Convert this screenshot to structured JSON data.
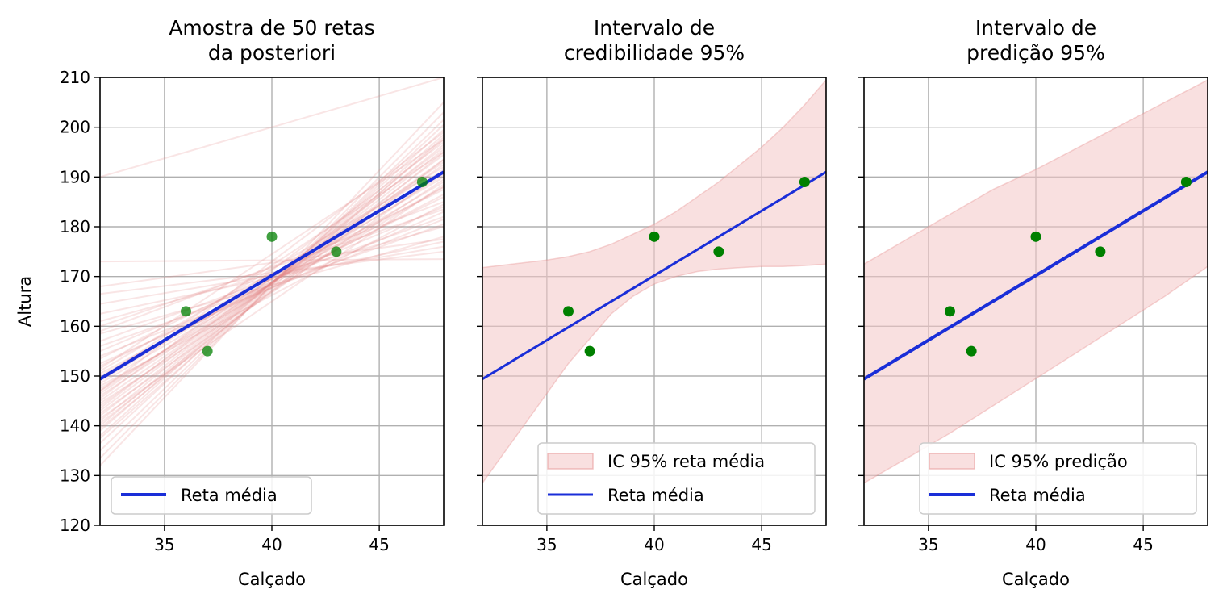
{
  "chart_data": [
    {
      "type": "line",
      "title_lines": [
        "Amostra de 50 retas",
        "da posteriori"
      ],
      "xlabel": "Calçado",
      "ylabel": "Altura",
      "xlim": [
        32,
        48
      ],
      "ylim": [
        120,
        210
      ],
      "xticks": [
        35,
        40,
        45
      ],
      "yticks": [
        120,
        130,
        140,
        150,
        160,
        170,
        180,
        190,
        200,
        210
      ],
      "show_yticklabels": true,
      "grid": true,
      "legend_position": "lower-left",
      "legend": [
        {
          "kind": "line",
          "label": "Reta média"
        }
      ],
      "points": {
        "x": [
          36,
          37,
          40,
          43,
          47
        ],
        "y": [
          163,
          155,
          178,
          175,
          189
        ],
        "color": "#008000"
      },
      "mean_line": {
        "intercept": 66.2,
        "slope": 2.6,
        "color": "#1a2ed8"
      },
      "posterior_lines": {
        "color": "#e58a8a",
        "lines": [
          [
            190.0,
            210.0
          ],
          [
            173.0,
            173.5
          ],
          [
            166.5,
            175.0
          ],
          [
            161.0,
            180.0
          ],
          [
            157.0,
            182.0
          ],
          [
            155.0,
            184.0
          ],
          [
            152.0,
            186.0
          ],
          [
            150.0,
            188.0
          ],
          [
            148.5,
            189.0
          ],
          [
            147.0,
            190.5
          ],
          [
            146.0,
            191.5
          ],
          [
            145.0,
            192.5
          ],
          [
            144.0,
            193.5
          ],
          [
            143.0,
            194.5
          ],
          [
            142.0,
            195.5
          ],
          [
            141.0,
            196.5
          ],
          [
            140.0,
            197.5
          ],
          [
            139.0,
            198.5
          ],
          [
            138.0,
            199.5
          ],
          [
            136.5,
            200.5
          ],
          [
            135.0,
            201.5
          ],
          [
            133.5,
            203.0
          ],
          [
            132.0,
            205.0
          ],
          [
            150.5,
            186.5
          ],
          [
            149.0,
            190.0
          ],
          [
            147.5,
            188.0
          ],
          [
            146.5,
            193.0
          ],
          [
            144.5,
            189.5
          ],
          [
            143.5,
            196.0
          ],
          [
            148.0,
            184.5
          ],
          [
            151.0,
            192.0
          ],
          [
            152.5,
            183.0
          ],
          [
            153.5,
            187.5
          ],
          [
            149.5,
            195.0
          ],
          [
            145.5,
            197.0
          ],
          [
            147.0,
            199.0
          ],
          [
            156.0,
            180.5
          ],
          [
            158.5,
            178.0
          ],
          [
            154.0,
            181.5
          ],
          [
            151.5,
            197.5
          ],
          [
            162.5,
            177.0
          ],
          [
            164.5,
            176.0
          ],
          [
            159.0,
            185.0
          ],
          [
            142.5,
            191.0
          ],
          [
            140.5,
            193.5
          ],
          [
            141.5,
            188.5
          ],
          [
            139.5,
            195.0
          ],
          [
            137.5,
            198.0
          ],
          [
            168.0,
            177.5
          ],
          [
            160.0,
            183.5
          ]
        ]
      }
    },
    {
      "type": "line",
      "title_lines": [
        "Intervalo de",
        "credibilidade 95%"
      ],
      "xlabel": "Calçado",
      "ylabel": "",
      "xlim": [
        32,
        48
      ],
      "ylim": [
        120,
        210
      ],
      "xticks": [
        35,
        40,
        45
      ],
      "yticks": [
        120,
        130,
        140,
        150,
        160,
        170,
        180,
        190,
        200,
        210
      ],
      "show_yticklabels": false,
      "grid": true,
      "legend_position": "lower-right",
      "legend": [
        {
          "kind": "patch",
          "label": "IC 95% reta média"
        },
        {
          "kind": "line",
          "label": "Reta média"
        }
      ],
      "points": {
        "x": [
          36,
          37,
          40,
          43,
          47
        ],
        "y": [
          163,
          155,
          178,
          175,
          189
        ],
        "color": "#008000"
      },
      "mean_line": {
        "intercept": 66.2,
        "slope": 2.6,
        "color": "#1a2ed8"
      },
      "band": {
        "color": "#f4c7c7",
        "x": [
          32,
          33,
          34,
          35,
          36,
          37,
          38,
          39,
          40,
          41,
          42,
          43,
          44,
          45,
          46,
          47,
          48
        ],
        "lower": [
          128.5,
          134.5,
          140.5,
          146.5,
          152.5,
          157.5,
          162.5,
          166.0,
          168.5,
          170.0,
          171.0,
          171.5,
          171.8,
          172.0,
          172.0,
          172.2,
          172.5
        ],
        "upper": [
          171.8,
          172.3,
          172.8,
          173.3,
          174.0,
          175.0,
          176.5,
          178.5,
          180.5,
          183.0,
          186.0,
          189.0,
          192.5,
          196.0,
          200.0,
          204.5,
          209.5
        ]
      }
    },
    {
      "type": "line",
      "title_lines": [
        "Intervalo de",
        "predição 95%"
      ],
      "xlabel": "Calçado",
      "ylabel": "",
      "xlim": [
        32,
        48
      ],
      "ylim": [
        120,
        210
      ],
      "xticks": [
        35,
        40,
        45
      ],
      "yticks": [
        120,
        130,
        140,
        150,
        160,
        170,
        180,
        190,
        200,
        210
      ],
      "show_yticklabels": false,
      "grid": true,
      "legend_position": "lower-right",
      "legend": [
        {
          "kind": "patch",
          "label": "IC 95% predição"
        },
        {
          "kind": "line",
          "label": "Reta média"
        }
      ],
      "points": {
        "x": [
          36,
          37,
          40,
          43,
          47
        ],
        "y": [
          163,
          155,
          178,
          175,
          189
        ],
        "color": "#008000"
      },
      "mean_line": {
        "intercept": 66.2,
        "slope": 2.6,
        "color": "#1a2ed8"
      },
      "band": {
        "color": "#f4c7c7",
        "x": [
          32,
          34,
          36,
          38,
          40,
          42,
          44,
          46,
          48
        ],
        "lower": [
          128.5,
          133.5,
          138.5,
          144.0,
          149.5,
          155.0,
          160.5,
          166.0,
          172.0
        ],
        "upper": [
          172.5,
          177.5,
          182.5,
          187.5,
          191.5,
          196.0,
          200.5,
          205.0,
          209.5
        ]
      }
    }
  ]
}
